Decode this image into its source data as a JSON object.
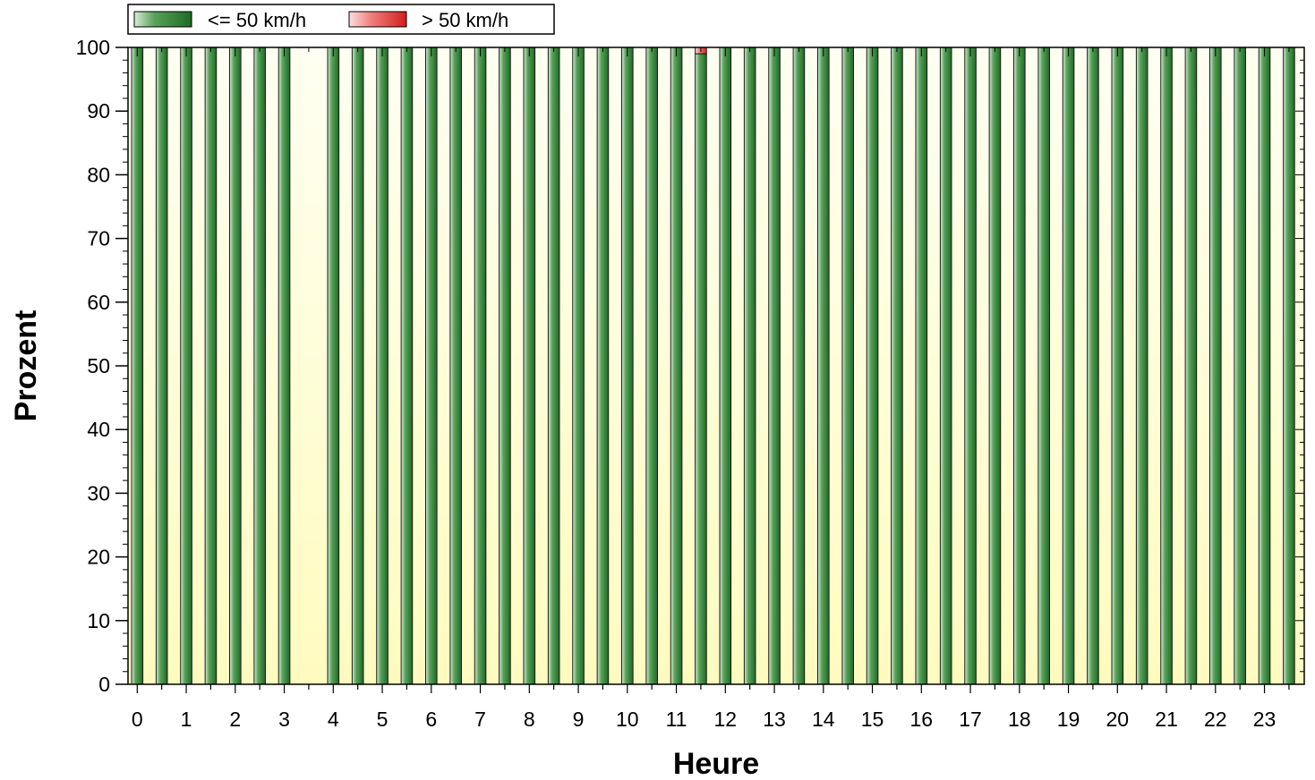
{
  "chart_data": {
    "type": "bar",
    "stacked": true,
    "xlabel": "Heure",
    "ylabel": "Prozent",
    "ylim": [
      0,
      100
    ],
    "yticks": [
      0,
      10,
      20,
      30,
      40,
      50,
      60,
      70,
      80,
      90,
      100
    ],
    "x_tick_labels": [
      "0",
      "1",
      "2",
      "3",
      "4",
      "5",
      "6",
      "7",
      "8",
      "9",
      "10",
      "11",
      "12",
      "13",
      "14",
      "15",
      "16",
      "17",
      "18",
      "19",
      "20",
      "21",
      "22",
      "23"
    ],
    "interval": "30 min",
    "categories": [
      "0:00",
      "0:30",
      "1:00",
      "1:30",
      "2:00",
      "2:30",
      "3:00",
      "3:30",
      "4:00",
      "4:30",
      "5:00",
      "5:30",
      "6:00",
      "6:30",
      "7:00",
      "7:30",
      "8:00",
      "8:30",
      "9:00",
      "9:30",
      "10:00",
      "10:30",
      "11:00",
      "11:30",
      "12:00",
      "12:30",
      "13:00",
      "13:30",
      "14:00",
      "14:30",
      "15:00",
      "15:30",
      "16:00",
      "16:30",
      "17:00",
      "17:30",
      "18:00",
      "18:30",
      "19:00",
      "19:30",
      "20:00",
      "20:30",
      "21:00",
      "21:30",
      "22:00",
      "22:30",
      "23:00",
      "23:30"
    ],
    "series": [
      {
        "name": "<= 50 km/h",
        "color": "#2e7d32",
        "values": [
          100,
          100,
          100,
          100,
          100,
          100,
          100,
          0,
          100,
          100,
          100,
          100,
          100,
          100,
          100,
          100,
          100,
          100,
          100,
          100,
          100,
          100,
          100,
          99,
          100,
          100,
          100,
          100,
          100,
          100,
          100,
          100,
          100,
          100,
          100,
          100,
          100,
          100,
          100,
          100,
          100,
          100,
          100,
          100,
          100,
          100,
          100,
          100
        ]
      },
      {
        "name": "> 50 km/h",
        "color": "#d32f2f",
        "values": [
          0,
          0,
          0,
          0,
          0,
          0,
          0,
          0,
          0,
          0,
          0,
          0,
          0,
          0,
          0,
          0,
          0,
          0,
          0,
          0,
          0,
          0,
          0,
          1,
          0,
          0,
          0,
          0,
          0,
          0,
          0,
          0,
          0,
          0,
          0,
          0,
          0,
          0,
          0,
          0,
          0,
          0,
          0,
          0,
          0,
          0,
          0,
          0
        ]
      }
    ],
    "legend": {
      "position": "top-left"
    },
    "background": "light yellow gradient"
  }
}
